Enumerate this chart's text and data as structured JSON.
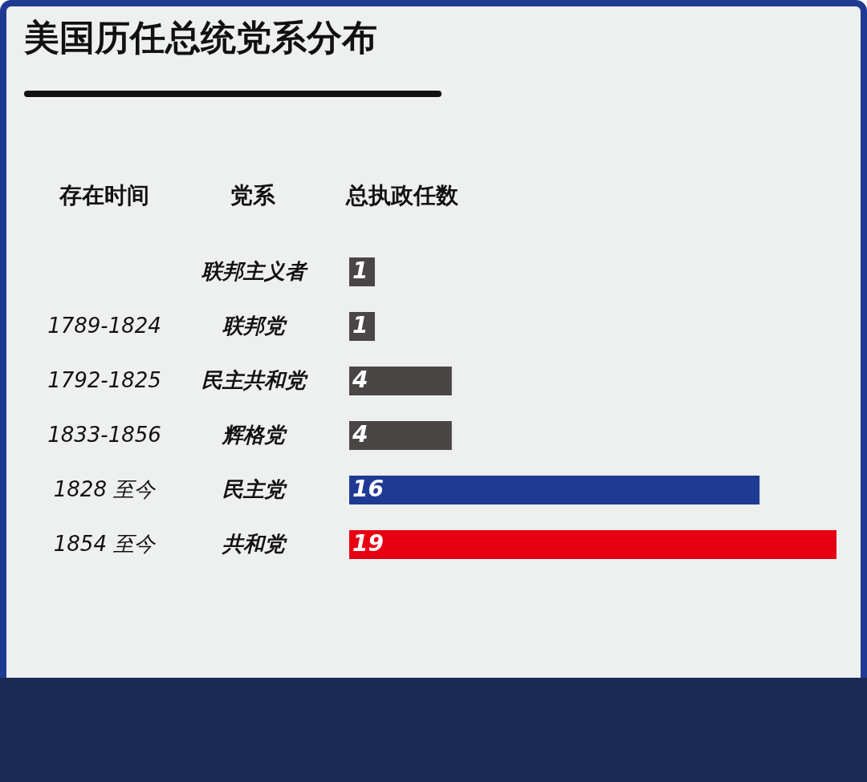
{
  "chart_data": {
    "type": "bar",
    "orientation": "horizontal",
    "title": "美国历任总统党系分布",
    "ylabel": "党系",
    "xlabel": "总执政任数",
    "categories": [
      "联邦主义者",
      "联邦党",
      "民主共和党",
      "辉格党",
      "民主党",
      "共和党"
    ],
    "values": [
      1,
      1,
      4,
      4,
      16,
      19
    ],
    "colors": [
      "#4a4646",
      "#4a4646",
      "#4a4646",
      "#4a4646",
      "#1f3a93",
      "#e60012"
    ],
    "xlim": [
      0,
      19
    ],
    "data_labels": true,
    "tick_labels": "y",
    "legend": false,
    "annotations": [
      "存在时间",
      "1789-1824",
      "1792-1825",
      "1833-1856",
      "1828 至今",
      "1854 至今"
    ]
  }
}
